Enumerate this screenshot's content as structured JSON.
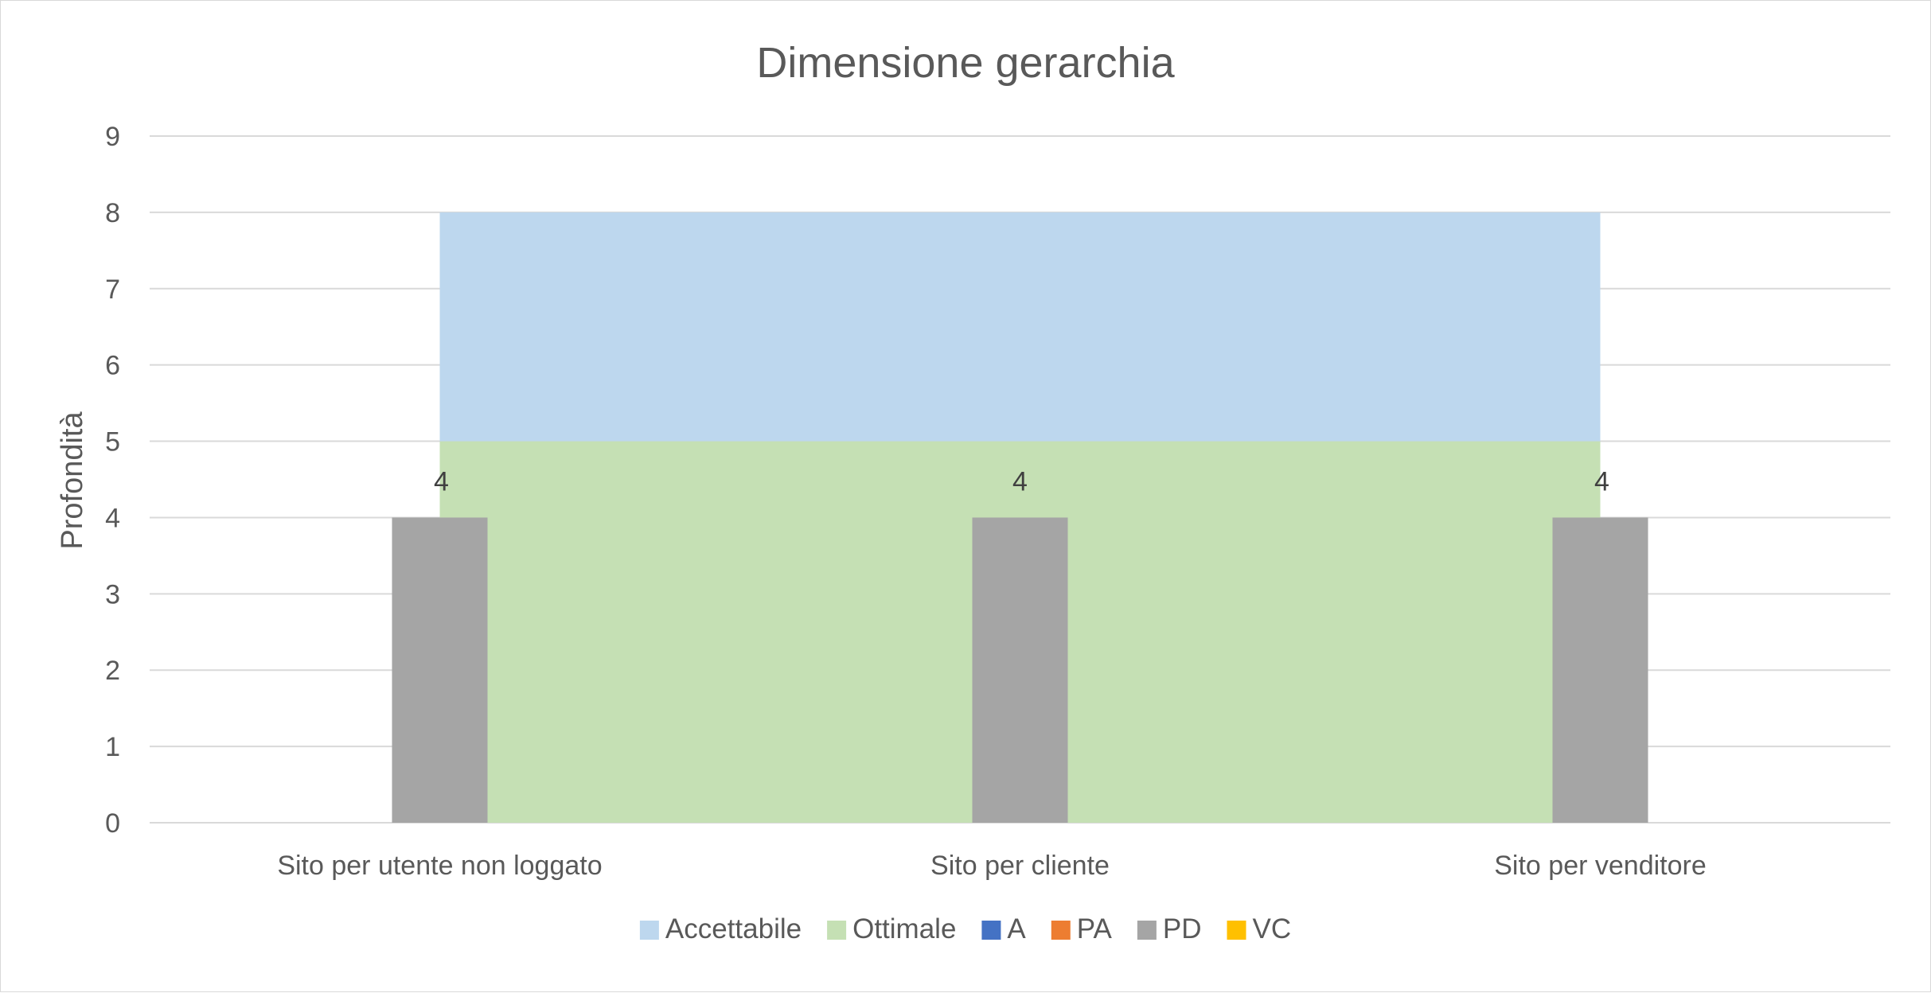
{
  "chart_data": {
    "type": "bar",
    "title": "Dimensione gerarchia",
    "xlabel": "",
    "ylabel": "Profondità",
    "ylim": [
      0,
      9
    ],
    "yticks": [
      "0",
      "1",
      "2",
      "3",
      "4",
      "5",
      "6",
      "7",
      "8",
      "9"
    ],
    "grid": true,
    "legend_position": "bottom",
    "categories": [
      "Sito per utente non loggato",
      "Sito per cliente",
      "Sito per venditore"
    ],
    "bands": [
      {
        "name": "Ottimale",
        "from": 0,
        "to": 5,
        "color": "#c5e0b4",
        "x_from": "Sito per utente non loggato",
        "x_to": "Sito per venditore"
      },
      {
        "name": "Accettabile",
        "from": 5,
        "to": 8,
        "color": "#bdd7ee",
        "x_from": "Sito per utente non loggato",
        "x_to": "Sito per venditore"
      }
    ],
    "series": [
      {
        "name": "PD",
        "values": [
          4,
          4,
          4
        ],
        "color": "#a5a5a5",
        "data_labels": [
          "4",
          "4",
          "4"
        ]
      }
    ],
    "legend": [
      {
        "name": "Accettabile",
        "color": "#bdd7ee"
      },
      {
        "name": "Ottimale",
        "color": "#c5e0b4"
      },
      {
        "name": "A",
        "color": "#4472c4"
      },
      {
        "name": "PA",
        "color": "#ed7d31"
      },
      {
        "name": "PD",
        "color": "#a5a5a5"
      },
      {
        "name": "VC",
        "color": "#ffc000"
      }
    ]
  }
}
